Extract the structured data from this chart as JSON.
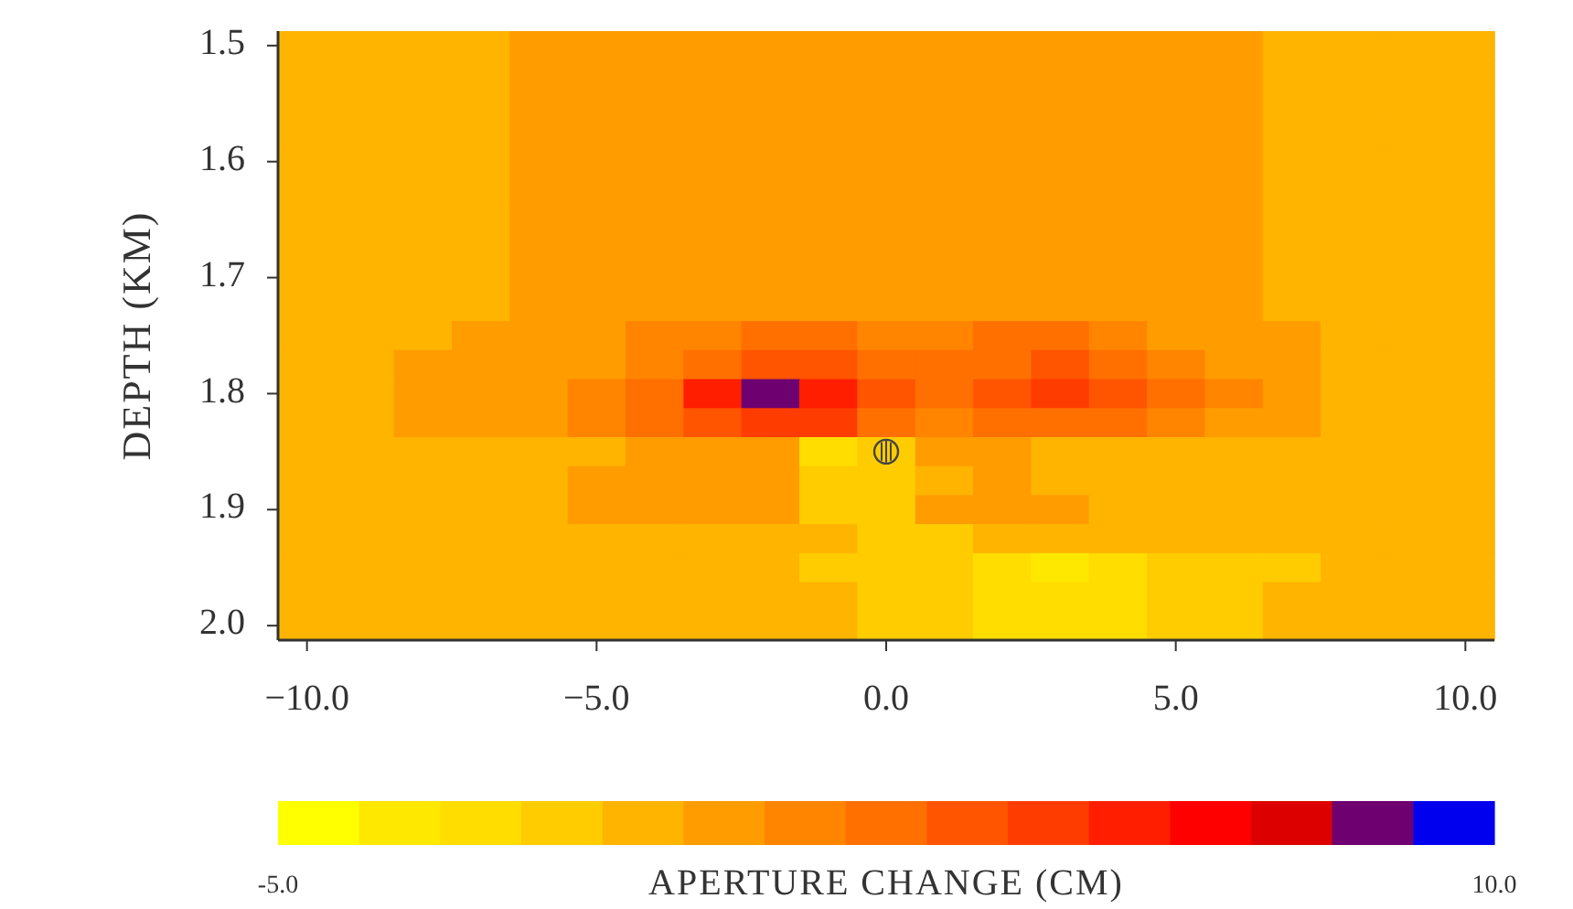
{
  "chart_data": {
    "type": "heatmap",
    "ylabel": "DEPTH (KM)",
    "clabel": "APERTURE CHANGE (CM)",
    "categories": [
      "−10.0",
      null,
      null,
      null,
      null,
      "−5.0",
      null,
      null,
      null,
      null,
      "0.0",
      null,
      null,
      null,
      null,
      "5.0",
      null,
      null,
      null,
      null,
      "10.0"
    ],
    "y_categories": [
      "1.5",
      null,
      null,
      null,
      "1.6",
      null,
      null,
      null,
      "1.7",
      null,
      null,
      null,
      "1.8",
      null,
      null,
      null,
      "1.9",
      null,
      null,
      null,
      "2.0"
    ],
    "clim": [
      -5,
      10
    ],
    "cticks": [
      {
        "value": -5,
        "label": "-5.0"
      },
      {
        "value": 10,
        "label": "10.0"
      }
    ],
    "colors": [
      "#ffff00",
      "#ffe800",
      "#ffdd00",
      "#ffcc00",
      "#ffb400",
      "#ff9c00",
      "#ff8400",
      "#ff7000",
      "#ff5400",
      "#ff3c00",
      "#ff1e00",
      "#ff0000",
      "#dd0000",
      "#6e0070",
      "#0000ee"
    ],
    "cells": [
      [
        -0.5,
        -0.5,
        -0.5,
        -0.5,
        0.5,
        0.5,
        0.5,
        0.5,
        0.5,
        0.5,
        0.5,
        0.5,
        0.5,
        0.5,
        0.5,
        0.5,
        0.5,
        -0.5,
        -0.5,
        -0.5,
        -0.5
      ],
      [
        -0.5,
        -0.5,
        -0.5,
        -0.5,
        0.5,
        0.5,
        0.5,
        0.5,
        0.5,
        0.5,
        0.5,
        0.5,
        0.5,
        0.5,
        0.5,
        0.5,
        0.5,
        -0.5,
        -0.5,
        -0.5,
        -0.5
      ],
      [
        -0.5,
        -0.5,
        -0.5,
        -0.5,
        0.5,
        0.5,
        0.5,
        0.5,
        0.5,
        0.5,
        0.5,
        0.5,
        0.5,
        0.5,
        0.5,
        0.5,
        0.5,
        -0.5,
        -0.5,
        -0.5,
        -0.5
      ],
      [
        -0.5,
        -0.5,
        -0.5,
        -0.5,
        0.5,
        0.5,
        0.5,
        0.5,
        0.5,
        0.5,
        0.5,
        0.5,
        0.5,
        0.5,
        0.5,
        0.5,
        0.5,
        -0.5,
        -0.5,
        -0.5,
        -0.5
      ],
      [
        -0.5,
        -0.5,
        -0.5,
        -0.5,
        0.5,
        0.5,
        0.5,
        0.5,
        0.5,
        0.5,
        0.5,
        0.5,
        0.5,
        0.5,
        0.5,
        0.5,
        0.5,
        -0.5,
        -0.5,
        -0.5,
        -0.5
      ],
      [
        -0.5,
        -0.5,
        -0.5,
        -0.5,
        0.5,
        0.5,
        0.5,
        0.5,
        0.5,
        0.5,
        0.5,
        0.5,
        0.5,
        0.5,
        0.5,
        0.5,
        0.5,
        -0.5,
        -0.5,
        -0.5,
        -0.5
      ],
      [
        -0.5,
        -0.5,
        -0.5,
        -0.5,
        0.5,
        0.5,
        0.5,
        0.5,
        0.5,
        0.5,
        0.5,
        0.5,
        0.5,
        0.5,
        0.5,
        0.5,
        0.5,
        -0.5,
        -0.5,
        -0.5,
        -0.5
      ],
      [
        -0.5,
        -0.5,
        -0.5,
        -0.5,
        0.5,
        0.5,
        0.5,
        0.5,
        0.5,
        0.5,
        0.5,
        0.5,
        0.5,
        0.5,
        0.5,
        0.5,
        0.5,
        -0.5,
        -0.5,
        -0.5,
        -0.5
      ],
      [
        -0.5,
        -0.5,
        -0.5,
        -0.5,
        0.5,
        0.5,
        0.5,
        0.5,
        0.5,
        0.5,
        0.5,
        0.5,
        0.5,
        0.5,
        0.5,
        0.5,
        0.5,
        -0.5,
        -0.5,
        -0.5,
        -0.5
      ],
      [
        -0.5,
        -0.5,
        -0.5,
        -0.5,
        0.5,
        0.5,
        0.5,
        0.5,
        0.5,
        0.5,
        0.5,
        0.5,
        0.5,
        0.5,
        0.5,
        0.5,
        0.5,
        -0.5,
        -0.5,
        -0.5,
        -0.5
      ],
      [
        -0.5,
        -0.5,
        -0.5,
        0.5,
        0.5,
        0.5,
        1.5,
        1.5,
        2.5,
        2.5,
        1.5,
        1.5,
        2.5,
        2.5,
        1.5,
        0.5,
        0.5,
        0.5,
        -0.5,
        -0.5,
        -0.5
      ],
      [
        -0.5,
        -0.5,
        0.5,
        0.5,
        0.5,
        0.5,
        1.5,
        2.5,
        3.5,
        3.5,
        2.5,
        2.5,
        2.5,
        3.5,
        2.5,
        1.5,
        0.5,
        0.5,
        -0.5,
        -0.5,
        -0.5
      ],
      [
        -0.5,
        -0.5,
        0.5,
        0.5,
        0.5,
        1.5,
        2.5,
        5.5,
        8.5,
        5.5,
        3.5,
        2.5,
        3.5,
        4.5,
        3.5,
        2.5,
        1.5,
        0.5,
        -0.5,
        -0.5,
        -0.5
      ],
      [
        -0.5,
        -0.5,
        0.5,
        0.5,
        0.5,
        1.5,
        2.5,
        3.5,
        4.5,
        4.5,
        2.5,
        1.5,
        2.5,
        2.5,
        2.5,
        1.5,
        0.5,
        0.5,
        -0.5,
        -0.5,
        -0.5
      ],
      [
        -0.5,
        -0.5,
        -0.5,
        -0.5,
        -0.5,
        -0.5,
        0.5,
        0.5,
        0.5,
        -2.5,
        -1.5,
        0.5,
        0.5,
        -0.5,
        -0.5,
        -0.5,
        -0.5,
        -0.5,
        -0.5,
        -0.5,
        -0.5
      ],
      [
        -0.5,
        -0.5,
        -0.5,
        -0.5,
        -0.5,
        0.5,
        0.5,
        0.5,
        0.5,
        -1.5,
        -1.5,
        -0.5,
        0.5,
        -0.5,
        -0.5,
        -0.5,
        -0.5,
        -0.5,
        -0.5,
        -0.5,
        -0.5
      ],
      [
        -0.5,
        -0.5,
        -0.5,
        -0.5,
        -0.5,
        0.5,
        0.5,
        0.5,
        0.5,
        -1.5,
        -1.5,
        0.5,
        0.5,
        0.5,
        -0.5,
        -0.5,
        -0.5,
        -0.5,
        -0.5,
        -0.5,
        -0.5
      ],
      [
        -0.5,
        -0.5,
        -0.5,
        -0.5,
        -0.5,
        -0.5,
        -0.5,
        -0.5,
        -0.5,
        -0.5,
        -1.5,
        -1.5,
        -0.5,
        -0.5,
        -0.5,
        -0.5,
        -0.5,
        -0.5,
        -0.5,
        -0.5,
        -0.5
      ],
      [
        -0.5,
        -0.5,
        -0.5,
        -0.5,
        -0.5,
        -0.5,
        -0.5,
        -0.5,
        -0.5,
        -1.5,
        -1.5,
        -1.5,
        -2.5,
        -3.5,
        -2.5,
        -1.5,
        -1.5,
        -1.5,
        -0.5,
        -0.5,
        -0.5
      ],
      [
        -0.5,
        -0.5,
        -0.5,
        -0.5,
        -0.5,
        -0.5,
        -0.5,
        -0.5,
        -0.5,
        -0.5,
        -1.5,
        -1.5,
        -2.5,
        -2.5,
        -2.5,
        -1.5,
        -1.5,
        -0.5,
        -0.5,
        -0.5,
        -0.5
      ],
      [
        -0.5,
        -0.5,
        -0.5,
        -0.5,
        -0.5,
        -0.5,
        -0.5,
        -0.5,
        -0.5,
        -0.5,
        -1.5,
        -1.5,
        -2.5,
        -2.5,
        -2.5,
        -1.5,
        -1.5,
        -0.5,
        -0.5,
        -0.5,
        -0.5
      ]
    ]
  }
}
